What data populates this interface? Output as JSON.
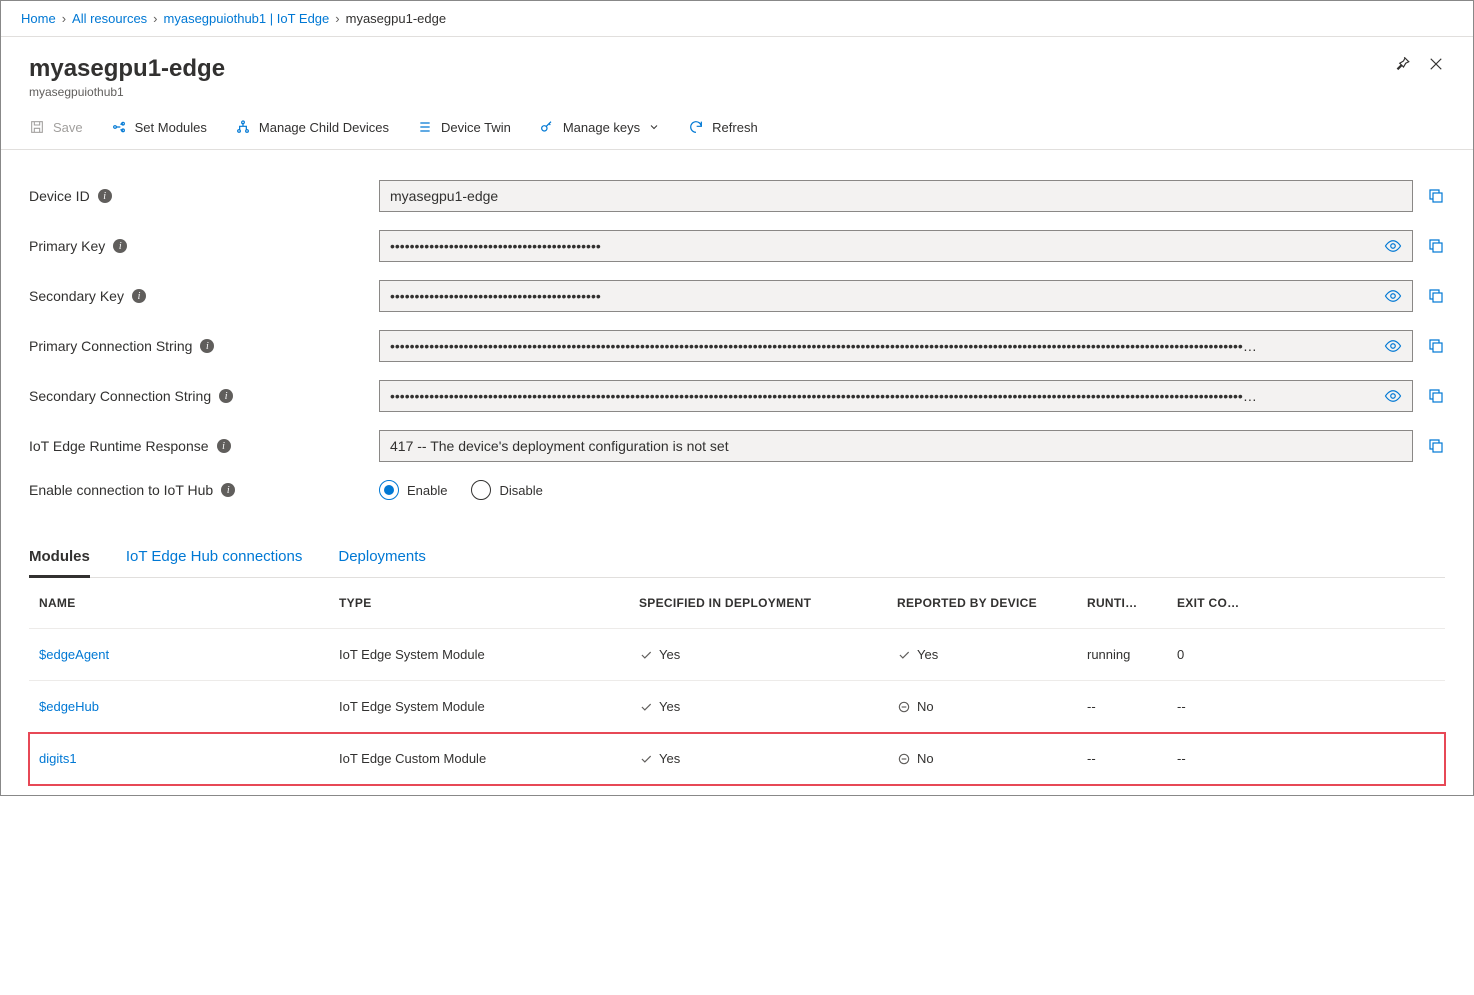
{
  "breadcrumb": {
    "items": [
      {
        "label": "Home",
        "link": true
      },
      {
        "label": "All resources",
        "link": true
      },
      {
        "label": "myasegpuiothub1 | IoT Edge",
        "link": true
      },
      {
        "label": "myasegpu1-edge",
        "link": false
      }
    ]
  },
  "header": {
    "title": "myasegpu1-edge",
    "subtitle": "myasegpuiothub1"
  },
  "toolbar": {
    "save": "Save",
    "set_modules": "Set Modules",
    "manage_child": "Manage Child Devices",
    "device_twin": "Device Twin",
    "manage_keys": "Manage keys",
    "refresh": "Refresh"
  },
  "fields": {
    "device_id": {
      "label": "Device ID",
      "value": "myasegpu1-edge"
    },
    "primary_key": {
      "label": "Primary Key",
      "value": "•••••••••••••••••••••••••••••••••••••••••••"
    },
    "secondary_key": {
      "label": "Secondary Key",
      "value": "•••••••••••••••••••••••••••••••••••••••••••"
    },
    "primary_cs": {
      "label": "Primary Connection String",
      "value": "••••••••••••••••••••••••••••••••••••••••••••••••••••••••••••••••••••••••••••••••••••••••••••••••••••••••••••••••••••••••••••••••••••••••••••••••••••••••••••••••••••••••••••••…"
    },
    "secondary_cs": {
      "label": "Secondary Connection String",
      "value": "••••••••••••••••••••••••••••••••••••••••••••••••••••••••••••••••••••••••••••••••••••••••••••••••••••••••••••••••••••••••••••••••••••••••••••••••••••••••••••••••••••••••••••••…"
    },
    "runtime": {
      "label": "IoT Edge Runtime Response",
      "value": "417 -- The device's deployment configuration is not set"
    },
    "enable_conn": {
      "label": "Enable connection to IoT Hub",
      "enable": "Enable",
      "disable": "Disable"
    }
  },
  "tabs": {
    "modules": "Modules",
    "connections": "IoT Edge Hub connections",
    "deployments": "Deployments"
  },
  "table": {
    "headers": {
      "name": "NAME",
      "type": "TYPE",
      "specified": "SPECIFIED IN DEPLOYMENT",
      "reported": "REPORTED BY DEVICE",
      "runtime": "RUNTI…",
      "exit": "EXIT CO…"
    },
    "rows": [
      {
        "name": "$edgeAgent",
        "type": "IoT Edge System Module",
        "specified": "Yes",
        "spec_ok": true,
        "reported": "Yes",
        "rep_ok": true,
        "runtime": "running",
        "exit": "0",
        "highlight": false
      },
      {
        "name": "$edgeHub",
        "type": "IoT Edge System Module",
        "specified": "Yes",
        "spec_ok": true,
        "reported": "No",
        "rep_ok": false,
        "runtime": "--",
        "exit": "--",
        "highlight": false
      },
      {
        "name": "digits1",
        "type": "IoT Edge Custom Module",
        "specified": "Yes",
        "spec_ok": true,
        "reported": "No",
        "rep_ok": false,
        "runtime": "--",
        "exit": "--",
        "highlight": true
      }
    ]
  },
  "colors": {
    "accent": "#0078d4",
    "text": "#323130",
    "subtle": "#605e5c",
    "border": "#e1dfdd",
    "input_bg": "#f3f2f1",
    "highlight": "#e74856"
  }
}
